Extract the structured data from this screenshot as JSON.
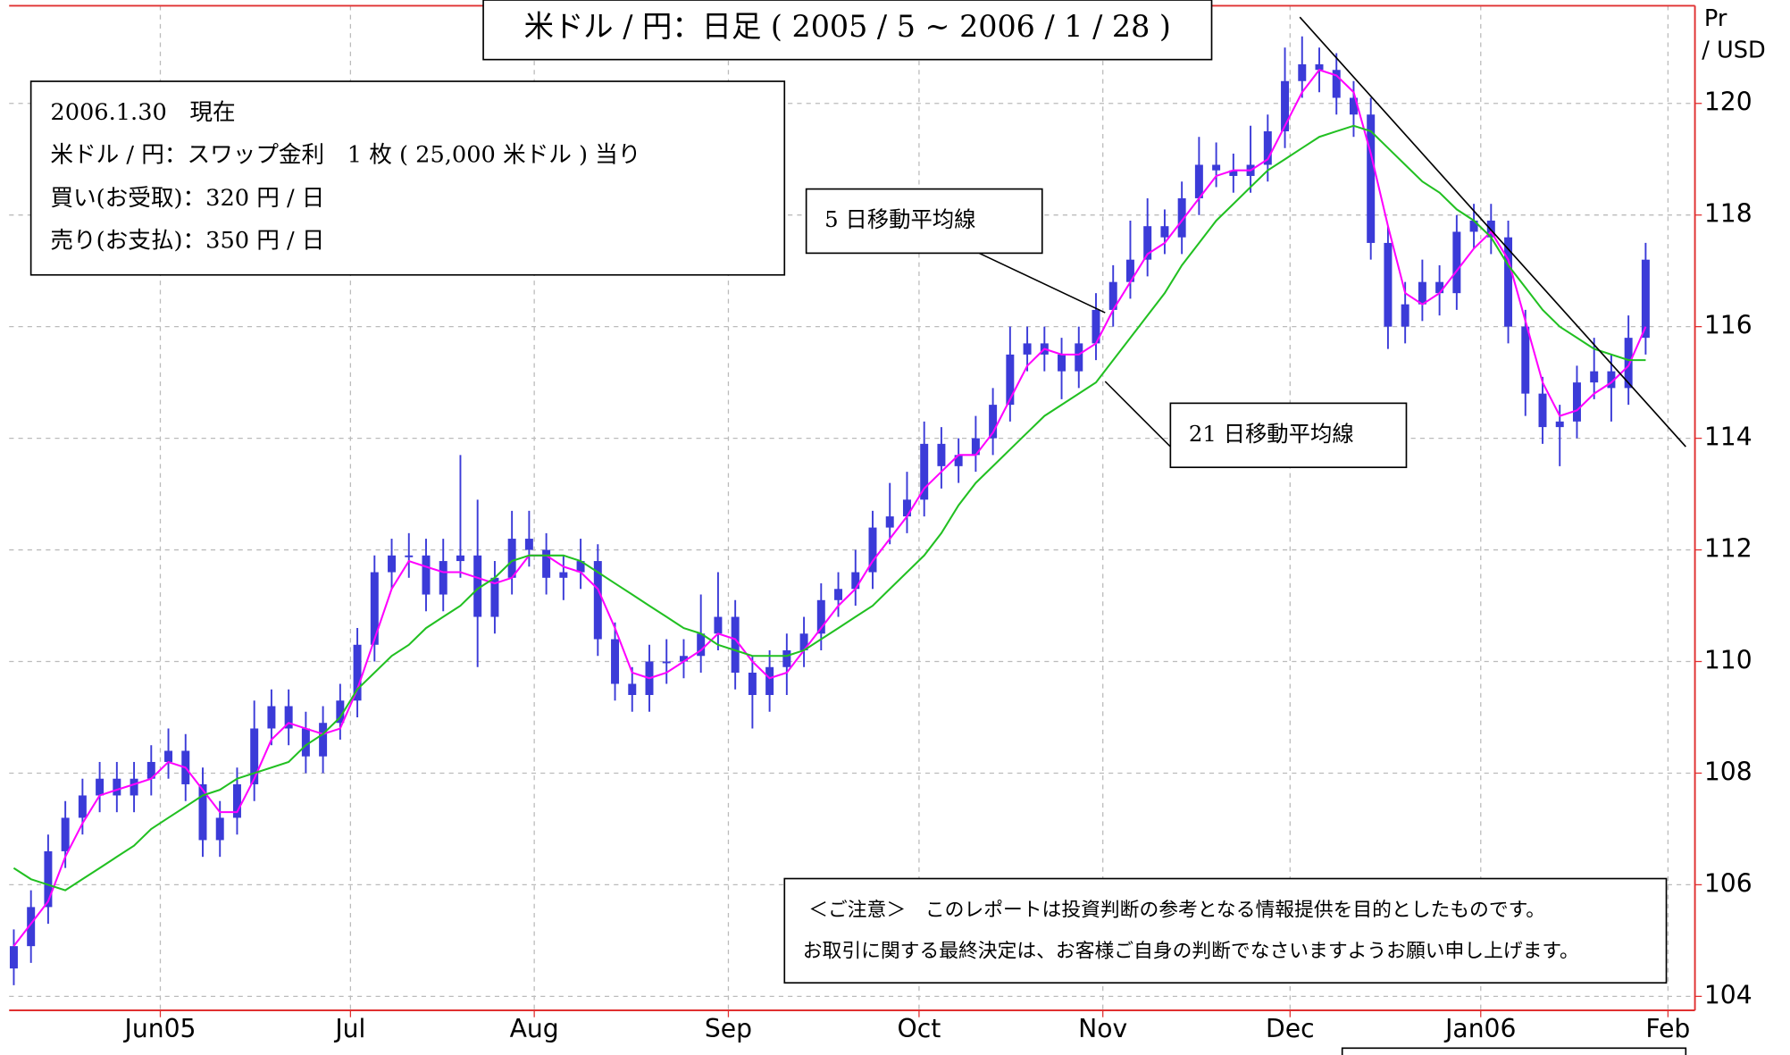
{
  "chart_data": {
    "type": "candlestick",
    "title": "米ドル / 円：日足 ( 2005 / 5 ~ 2006 / 1 / 28 )",
    "y_axis_label": [
      "Pr",
      "/ USD"
    ],
    "info": [
      "2006.1.30　現在",
      "米ドル / 円：スワップ金利　1 枚 ( 25,000 米ドル ) 当り",
      "買い(お受取)：320 円 / 日",
      "売り(お支払)：350 円 / 日"
    ],
    "notice": [
      "＜ご注意＞　このレポートは投資判断の参考となる情報提供を目的としたものです。",
      "お取引に関する最終決定は、お客様ご自身の判断でなさいますようお願い申し上げます。"
    ],
    "ylim": [
      103.75,
      121.75
    ],
    "yticks": [
      104,
      106,
      108,
      110,
      112,
      114,
      116,
      118,
      120
    ],
    "xlim": [
      -0.27,
      97.87
    ],
    "xticks": [
      {
        "value": 8.53,
        "label": "Jun05"
      },
      {
        "value": 19.6,
        "label": "Jul"
      },
      {
        "value": 30.3,
        "label": "Aug"
      },
      {
        "value": 41.6,
        "label": "Sep"
      },
      {
        "value": 52.7,
        "label": "Oct"
      },
      {
        "value": 63.4,
        "label": "Nov"
      },
      {
        "value": 74.3,
        "label": "Dec"
      },
      {
        "value": 85.4,
        "label": "Jan06"
      },
      {
        "value": 96.3,
        "label": "Feb"
      }
    ],
    "grid": true,
    "color": "#3b3bd8",
    "open": [
      104.5,
      104.9,
      105.6,
      106.6,
      107.2,
      107.6,
      107.9,
      107.6,
      107.9,
      108.2,
      108.4,
      107.8,
      106.8,
      107.2,
      107.8,
      108.8,
      109.2,
      108.8,
      108.3,
      108.9,
      109.3,
      110.3,
      111.6,
      111.9,
      111.9,
      111.2,
      111.8,
      111.9,
      110.8,
      111.5,
      112.2,
      112.0,
      111.5,
      111.6,
      111.8,
      110.4,
      109.6,
      109.4,
      110.0,
      110.0,
      110.1,
      110.5,
      110.8,
      109.8,
      109.4,
      109.9,
      110.2,
      110.5,
      111.1,
      111.3,
      111.6,
      112.4,
      112.6,
      112.9,
      113.9,
      113.5,
      113.7,
      114.0,
      114.6,
      115.5,
      115.7,
      115.5,
      115.2,
      115.7,
      116.3,
      116.8,
      117.2,
      117.8,
      117.6,
      118.3,
      118.9,
      118.8,
      118.7,
      118.9,
      119.5,
      120.4,
      120.7,
      120.6,
      120.1,
      119.8,
      117.5,
      116.0,
      116.4,
      116.8,
      116.6,
      117.7,
      117.9,
      117.6,
      116.0,
      114.8,
      114.2,
      114.3,
      115.0,
      115.2,
      114.9,
      115.8
    ],
    "high": [
      105.2,
      105.9,
      106.9,
      107.5,
      107.9,
      108.2,
      108.2,
      108.2,
      108.5,
      108.8,
      108.7,
      108.1,
      107.5,
      108.1,
      109.3,
      109.5,
      109.5,
      109.1,
      109.2,
      109.6,
      110.6,
      111.9,
      112.2,
      112.3,
      112.2,
      112.2,
      113.7,
      112.9,
      111.8,
      112.7,
      112.7,
      112.3,
      111.9,
      112.2,
      112.1,
      110.7,
      109.9,
      110.3,
      110.4,
      110.4,
      111.2,
      111.6,
      111.1,
      110.1,
      110.2,
      110.5,
      110.8,
      111.4,
      111.6,
      112.0,
      112.7,
      113.2,
      113.4,
      114.3,
      114.2,
      114.0,
      114.4,
      114.9,
      116.0,
      116.0,
      116.0,
      115.8,
      116.0,
      116.6,
      117.1,
      117.9,
      118.3,
      118.1,
      118.6,
      119.4,
      119.3,
      119.1,
      119.6,
      119.8,
      121.0,
      121.2,
      121.0,
      120.9,
      120.4,
      120.1,
      117.8,
      116.8,
      117.2,
      117.1,
      118.0,
      118.2,
      118.2,
      117.9,
      116.3,
      115.1,
      114.6,
      115.3,
      115.8,
      115.5,
      116.2,
      117.5
    ],
    "low": [
      104.2,
      104.6,
      105.3,
      106.3,
      106.9,
      107.3,
      107.3,
      107.3,
      107.6,
      107.9,
      107.5,
      106.5,
      106.5,
      106.9,
      107.5,
      108.5,
      108.5,
      108.0,
      108.0,
      108.6,
      109.0,
      110.0,
      111.3,
      111.5,
      110.9,
      110.9,
      111.5,
      109.9,
      110.5,
      111.2,
      111.7,
      111.2,
      111.1,
      111.3,
      110.1,
      109.3,
      109.1,
      109.1,
      109.6,
      109.7,
      109.8,
      110.2,
      109.5,
      108.8,
      109.1,
      109.4,
      109.9,
      110.2,
      110.8,
      111.0,
      111.3,
      112.1,
      112.3,
      112.6,
      113.1,
      113.2,
      113.4,
      113.7,
      114.3,
      115.2,
      115.2,
      114.7,
      114.9,
      115.4,
      116.0,
      116.5,
      116.9,
      117.3,
      117.3,
      118.0,
      118.5,
      118.4,
      118.4,
      118.6,
      119.2,
      120.1,
      120.2,
      119.8,
      119.4,
      117.2,
      115.6,
      115.7,
      116.1,
      116.2,
      116.3,
      117.4,
      117.3,
      115.7,
      114.4,
      113.9,
      113.5,
      114.0,
      114.7,
      114.3,
      114.6,
      115.5
    ],
    "close": [
      104.9,
      105.6,
      106.6,
      107.2,
      107.6,
      107.9,
      107.6,
      107.9,
      108.2,
      108.4,
      107.8,
      106.8,
      107.2,
      107.8,
      108.8,
      109.2,
      108.8,
      108.3,
      108.9,
      109.3,
      110.3,
      111.6,
      111.9,
      111.9,
      111.2,
      111.8,
      111.9,
      110.8,
      111.5,
      112.2,
      112.0,
      111.5,
      111.6,
      111.8,
      110.4,
      109.6,
      109.4,
      110.0,
      110.0,
      110.1,
      110.5,
      110.8,
      109.8,
      109.4,
      109.9,
      110.2,
      110.5,
      111.1,
      111.3,
      111.6,
      112.4,
      112.6,
      112.9,
      113.9,
      113.5,
      113.7,
      114.0,
      114.6,
      115.5,
      115.7,
      115.5,
      115.2,
      115.7,
      116.3,
      116.8,
      117.2,
      117.8,
      117.6,
      118.3,
      118.9,
      118.8,
      118.7,
      118.9,
      119.5,
      120.4,
      120.7,
      120.6,
      120.1,
      119.8,
      117.5,
      116.0,
      116.4,
      116.8,
      116.6,
      117.7,
      117.9,
      117.6,
      116.0,
      114.8,
      114.2,
      114.3,
      115.0,
      115.2,
      114.9,
      115.8,
      117.2
    ],
    "series": [
      {
        "name": "5 日移動平均線",
        "color": "#ff00ff",
        "values": [
          104.9,
          105.3,
          105.7,
          106.5,
          107.1,
          107.6,
          107.7,
          107.8,
          107.9,
          108.2,
          108.1,
          107.7,
          107.3,
          107.3,
          107.9,
          108.6,
          108.9,
          108.8,
          108.7,
          108.8,
          109.5,
          110.4,
          111.3,
          111.8,
          111.7,
          111.6,
          111.6,
          111.5,
          111.4,
          111.5,
          111.9,
          111.9,
          111.7,
          111.6,
          111.3,
          110.6,
          109.8,
          109.7,
          109.8,
          110.0,
          110.2,
          110.5,
          110.4,
          110.0,
          109.7,
          109.8,
          110.2,
          110.6,
          111.0,
          111.3,
          111.8,
          112.2,
          112.6,
          113.1,
          113.4,
          113.7,
          113.7,
          114.1,
          114.7,
          115.3,
          115.6,
          115.5,
          115.5,
          115.7,
          116.3,
          116.8,
          117.3,
          117.5,
          117.9,
          118.3,
          118.7,
          118.8,
          118.8,
          119.0,
          119.6,
          120.2,
          120.6,
          120.5,
          120.2,
          119.1,
          117.8,
          116.6,
          116.4,
          116.6,
          117.0,
          117.4,
          117.7,
          117.2,
          116.1,
          115.0,
          114.4,
          114.5,
          114.8,
          115.0,
          115.3,
          116.0
        ]
      },
      {
        "name": "21 日移動平均線",
        "color": "#22c022",
        "values": [
          106.3,
          106.1,
          106.0,
          105.9,
          106.1,
          106.3,
          106.5,
          106.7,
          107.0,
          107.2,
          107.4,
          107.6,
          107.7,
          107.9,
          108.0,
          108.1,
          108.2,
          108.5,
          108.7,
          109.0,
          109.5,
          109.8,
          110.1,
          110.3,
          110.6,
          110.8,
          111.0,
          111.3,
          111.5,
          111.8,
          111.9,
          111.9,
          111.9,
          111.8,
          111.6,
          111.4,
          111.2,
          111.0,
          110.8,
          110.6,
          110.5,
          110.3,
          110.2,
          110.1,
          110.1,
          110.1,
          110.2,
          110.4,
          110.6,
          110.8,
          111.0,
          111.3,
          111.6,
          111.9,
          112.3,
          112.8,
          113.2,
          113.5,
          113.8,
          114.1,
          114.4,
          114.6,
          114.8,
          115.0,
          115.4,
          115.8,
          116.2,
          116.6,
          117.1,
          117.5,
          117.9,
          118.2,
          118.5,
          118.8,
          119.0,
          119.2,
          119.4,
          119.5,
          119.6,
          119.5,
          119.2,
          118.9,
          118.6,
          118.4,
          118.1,
          117.9,
          117.6,
          117.1,
          116.7,
          116.3,
          116.0,
          115.8,
          115.6,
          115.5,
          115.4,
          115.4
        ]
      }
    ]
  }
}
